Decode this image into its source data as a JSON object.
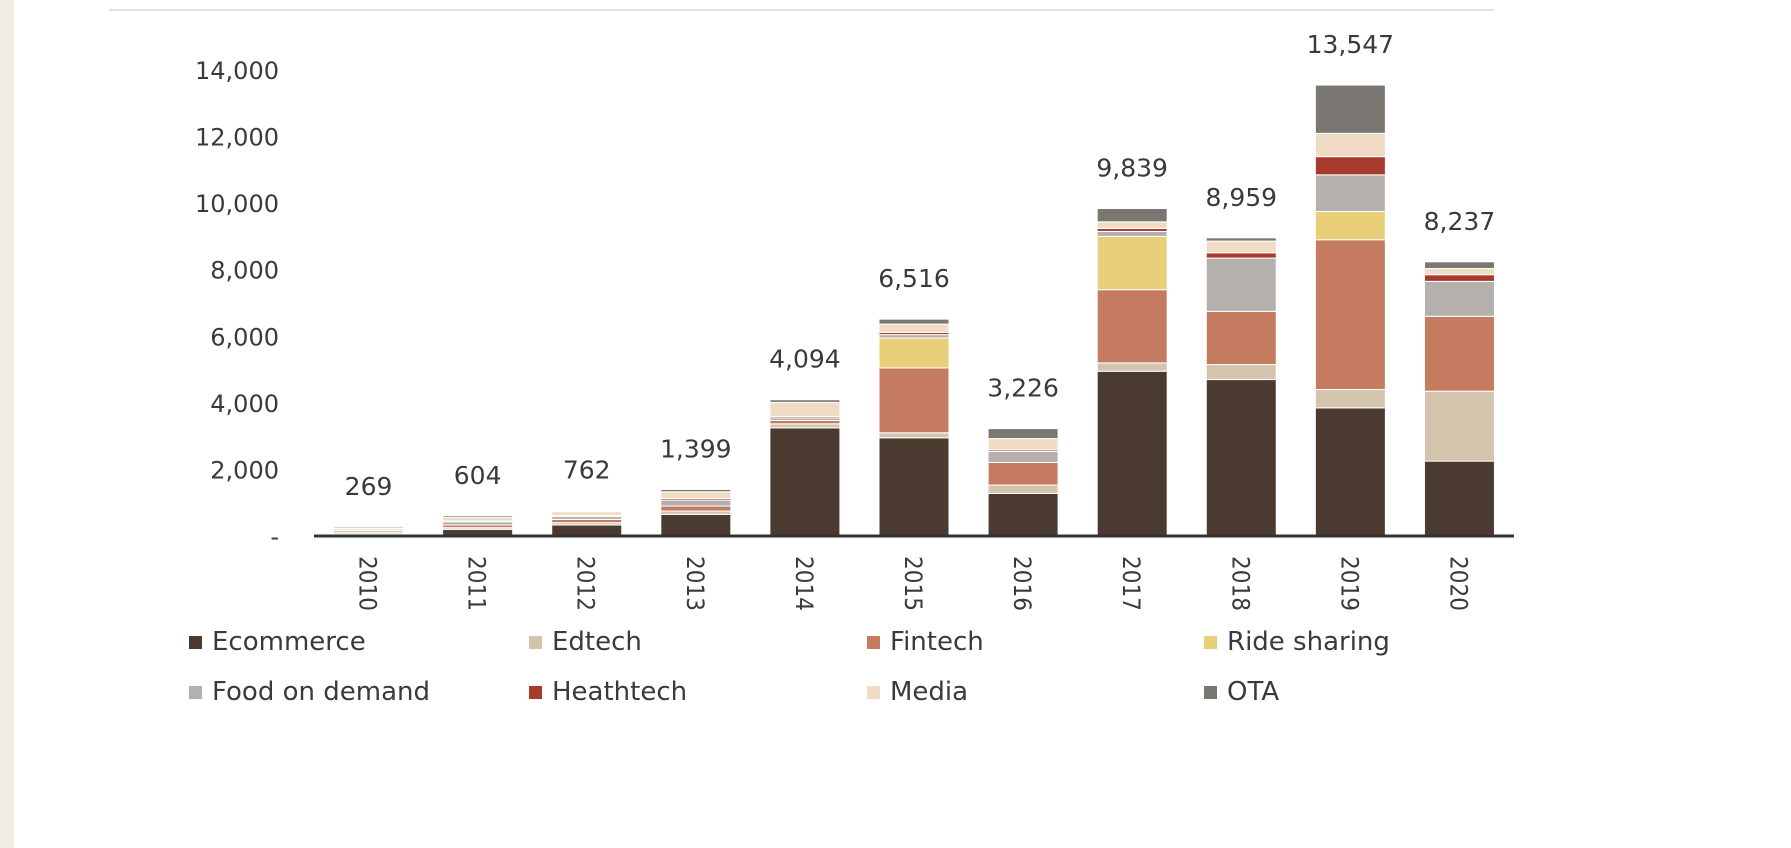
{
  "chart_data": {
    "type": "bar",
    "stacked": true,
    "title": "",
    "xlabel": "",
    "ylabel": "",
    "ylim": [
      0,
      14000
    ],
    "yticks": [
      0,
      2000,
      4000,
      6000,
      8000,
      10000,
      12000,
      14000
    ],
    "ytick_labels": [
      "-",
      "2,000",
      "4,000",
      "6,000",
      "8,000",
      "10,000",
      "12,000",
      "14,000"
    ],
    "categories": [
      "2010",
      "2011",
      "2012",
      "2013",
      "2014",
      "2015",
      "2016",
      "2017",
      "2018",
      "2019",
      "2020"
    ],
    "totals": [
      269,
      604,
      762,
      1399,
      4094,
      6516,
      3226,
      9839,
      8959,
      13547,
      8237
    ],
    "total_labels": [
      "269",
      "604",
      "762",
      "1,399",
      "4,094",
      "6,516",
      "3,226",
      "9,839",
      "8,959",
      "13,547",
      "8,237"
    ],
    "grid": false,
    "legend": "bottom",
    "series": [
      {
        "name": "Ecommerce",
        "color": "#4a3a30",
        "values": [
          40,
          200,
          330,
          650,
          3250,
          2950,
          1280,
          4950,
          4700,
          3850,
          2250
        ]
      },
      {
        "name": "Edtech",
        "color": "#d4c4ad",
        "values": [
          20,
          50,
          70,
          100,
          120,
          150,
          250,
          250,
          450,
          550,
          2100
        ]
      },
      {
        "name": "Fintech",
        "color": "#c47b60",
        "values": [
          40,
          80,
          100,
          150,
          100,
          1950,
          680,
          2200,
          1600,
          4500,
          2250
        ]
      },
      {
        "name": "Ride sharing",
        "color": "#e8cf78",
        "values": [
          0,
          0,
          0,
          0,
          0,
          900,
          0,
          1600,
          0,
          850,
          0
        ]
      },
      {
        "name": "Food on demand",
        "color": "#b4b0ae",
        "values": [
          60,
          100,
          90,
          180,
          80,
          100,
          330,
          150,
          1600,
          1100,
          1050
        ]
      },
      {
        "name": "Heathtech",
        "color": "#a83a2c",
        "values": [
          10,
          20,
          22,
          49,
          44,
          66,
          50,
          89,
          159,
          547,
          200
        ]
      },
      {
        "name": "Media",
        "color": "#f0dcc4",
        "values": [
          60,
          104,
          120,
          200,
          420,
          250,
          336,
          200,
          350,
          700,
          187
        ]
      },
      {
        "name": "OTA",
        "color": "#7a7672",
        "values": [
          39,
          50,
          30,
          70,
          80,
          150,
          300,
          400,
          100,
          1450,
          200
        ]
      }
    ]
  }
}
